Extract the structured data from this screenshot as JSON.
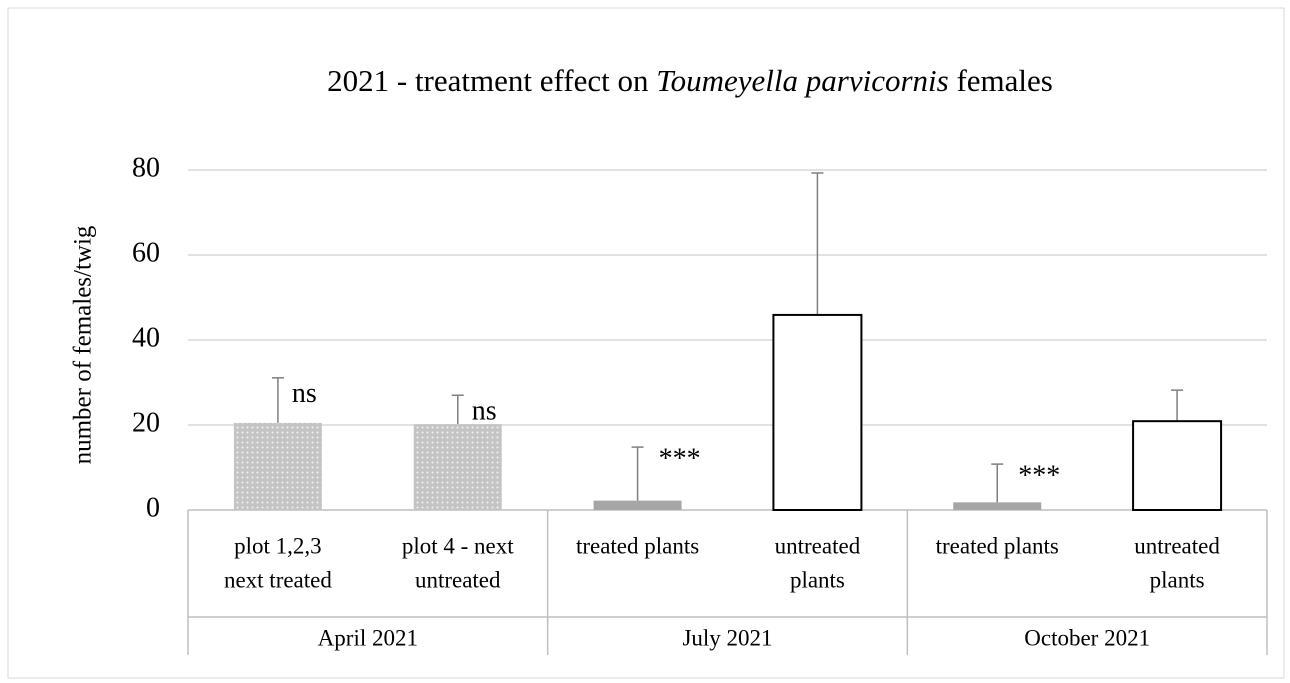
{
  "chart_data": {
    "type": "bar",
    "title": [
      "2021 - treatment effect on ",
      "Toumeyella parvicornis",
      " females"
    ],
    "y_label": "number of females/twig",
    "categories": [
      [
        "plot 1,2,3",
        "next treated"
      ],
      [
        "plot 4 - next",
        "untreated"
      ],
      [
        "treated plants"
      ],
      [
        "untreated",
        "plants"
      ],
      [
        "treated plants"
      ],
      [
        "untreated",
        "plants"
      ]
    ],
    "groups": [
      "April 2021",
      "July 2021",
      "October 2021"
    ],
    "values": [
      20.5,
      20.2,
      2.2,
      45.9,
      1.8,
      20.9
    ],
    "errors": [
      10.6,
      6.8,
      12.6,
      33.4,
      9,
      7.3
    ],
    "annotations": [
      "ns",
      "ns",
      "***",
      null,
      "***",
      null
    ],
    "styles": [
      "dotted",
      "dotted",
      "solid",
      "outline",
      "solid",
      "outline"
    ],
    "colors": [
      "#c4c4c4",
      "#c4c4c4",
      "#a6a6a6",
      "#ffffff",
      "#a6a6a6",
      "#ffffff"
    ],
    "error_color": "#7f7f7f",
    "ylim": [
      0,
      80
    ],
    "yticks": [
      0,
      20,
      40,
      60,
      80
    ],
    "grid": true
  }
}
